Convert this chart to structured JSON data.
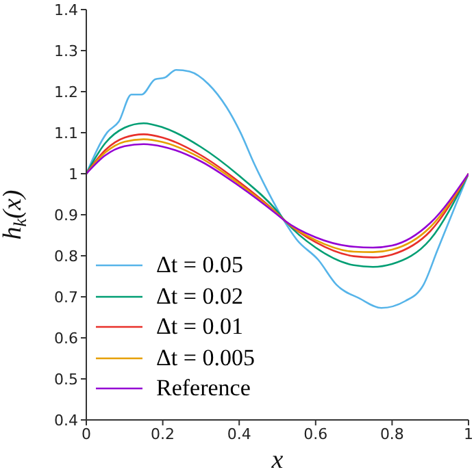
{
  "chart_data": {
    "type": "line",
    "xlabel": "x",
    "ylabel": "h$_{k}$(x)",
    "xlim": [
      0,
      1
    ],
    "xticks": [
      0,
      0.2,
      0.4,
      0.6,
      0.8,
      1
    ],
    "ylim": [
      0.4,
      1.4
    ],
    "yticks": [
      0.4,
      0.5,
      0.6,
      0.7,
      0.8,
      0.9,
      1,
      1.1,
      1.2,
      1.3,
      1.4
    ],
    "legend": "bottom left",
    "grid": false,
    "marker": "none",
    "line_style": "solid",
    "x": [
      0,
      0.05,
      0.1,
      0.15,
      0.2,
      0.3,
      0.4,
      0.5,
      0.52,
      0.6,
      0.7,
      0.75,
      0.8,
      0.9,
      1
    ],
    "series": [
      {
        "name": "Δt = 0.05",
        "color": "#56b4e9",
        "x": [
          0,
          0.055,
          0.085,
          0.118,
          0.145,
          0.18,
          0.205,
          0.235,
          0.27,
          0.32,
          0.367,
          0.403,
          0.44,
          0.475,
          0.517,
          0.55,
          0.607,
          0.655,
          0.715,
          0.772,
          0.835,
          0.882,
          0.918,
          0.966,
          1
        ],
        "values": [
          1,
          1.101,
          1.127,
          1.193,
          1.193,
          1.23,
          1.234,
          1.253,
          1.249,
          1.218,
          1.162,
          1.101,
          1.023,
          0.957,
          0.886,
          0.84,
          0.79,
          0.729,
          0.696,
          0.673,
          0.69,
          0.729,
          0.812,
          0.923,
          1
        ]
      },
      {
        "name": "Δt = 0.02",
        "color": "#009e73",
        "values": [
          1,
          1.075,
          1.112,
          1.123,
          1.113,
          1.065,
          0.995,
          0.908,
          0.885,
          0.82,
          0.777,
          0.773,
          0.78,
          0.84,
          1
        ]
      },
      {
        "name": "Δt = 0.01",
        "color": "#e8302a",
        "values": [
          1,
          1.058,
          1.088,
          1.096,
          1.088,
          1.045,
          0.98,
          0.903,
          0.885,
          0.833,
          0.799,
          0.796,
          0.803,
          0.86,
          1
        ]
      },
      {
        "name": "Δt = 0.005",
        "color": "#e69f00",
        "values": [
          1,
          1.052,
          1.078,
          1.084,
          1.077,
          1.038,
          0.975,
          0.902,
          0.885,
          0.838,
          0.81,
          0.809,
          0.815,
          0.87,
          1
        ]
      },
      {
        "name": "Reference",
        "color": "#9400d3",
        "values": [
          1,
          1.045,
          1.067,
          1.072,
          1.066,
          1.03,
          0.97,
          0.9,
          0.885,
          0.845,
          0.822,
          0.82,
          0.825,
          0.88,
          1
        ]
      }
    ]
  }
}
